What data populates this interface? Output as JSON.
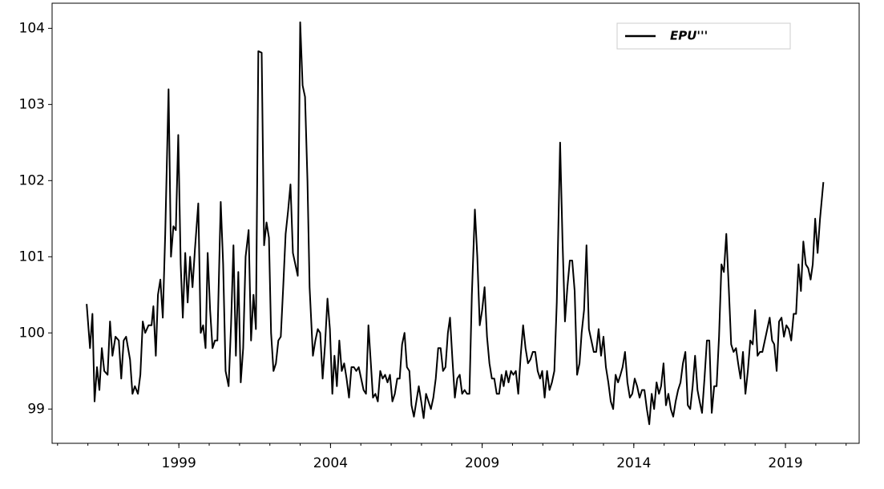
{
  "chart_data": {
    "type": "line",
    "x": [
      1995.96,
      1996.07,
      1996.15,
      1996.22,
      1996.3,
      1996.38,
      1996.46,
      1996.54,
      1996.65,
      1996.73,
      1996.81,
      1996.91,
      1997.02,
      1997.1,
      1997.18,
      1997.26,
      1997.39,
      1997.47,
      1997.55,
      1997.65,
      1997.73,
      1997.81,
      1997.89,
      1998.0,
      1998.1,
      1998.16,
      1998.24,
      1998.31,
      1998.39,
      1998.47,
      1998.55,
      1998.66,
      1998.74,
      1998.82,
      1998.9,
      1998.98,
      1999.06,
      1999.13,
      1999.21,
      1999.29,
      1999.37,
      1999.45,
      1999.53,
      1999.64,
      1999.72,
      1999.8,
      1999.88,
      1999.95,
      2000.03,
      2000.11,
      2000.19,
      2000.27,
      2000.38,
      2000.46,
      2000.54,
      2000.64,
      2000.72,
      2000.8,
      2000.88,
      2000.96,
      2001.04,
      2001.12,
      2001.2,
      2001.3,
      2001.38,
      2001.46,
      2001.54,
      2001.62,
      2001.73,
      2001.81,
      2001.89,
      2001.97,
      2002.04,
      2002.12,
      2002.2,
      2002.28,
      2002.36,
      2002.44,
      2002.52,
      2002.6,
      2002.68,
      2002.76,
      2002.84,
      2002.92,
      2003.0,
      2003.08,
      2003.16,
      2003.24,
      2003.31,
      2003.42,
      2003.5,
      2003.58,
      2003.66,
      2003.74,
      2003.82,
      2003.9,
      2003.98,
      2004.06,
      2004.13,
      2004.21,
      2004.29,
      2004.37,
      2004.45,
      2004.53,
      2004.61,
      2004.69,
      2004.77,
      2004.85,
      2004.93,
      2005.01,
      2005.09,
      2005.17,
      2005.25,
      2005.33,
      2005.4,
      2005.48,
      2005.56,
      2005.64,
      2005.72,
      2005.8,
      2005.88,
      2005.96,
      2006.04,
      2006.12,
      2006.2,
      2006.28,
      2006.36,
      2006.44,
      2006.52,
      2006.6,
      2006.67,
      2006.75,
      2006.83,
      2006.91,
      2006.99,
      2007.07,
      2007.15,
      2007.23,
      2007.31,
      2007.39,
      2007.47,
      2007.55,
      2007.63,
      2007.71,
      2007.79,
      2007.87,
      2007.94,
      2008.02,
      2008.1,
      2008.18,
      2008.26,
      2008.34,
      2008.42,
      2008.5,
      2008.58,
      2008.66,
      2008.76,
      2008.84,
      2008.92,
      2009.0,
      2009.08,
      2009.16,
      2009.24,
      2009.32,
      2009.4,
      2009.48,
      2009.56,
      2009.64,
      2009.71,
      2009.79,
      2009.87,
      2009.95,
      2010.03,
      2010.11,
      2010.19,
      2010.27,
      2010.35,
      2010.43,
      2010.51,
      2010.59,
      2010.67,
      2010.75,
      2010.83,
      2010.91,
      2010.98,
      2011.06,
      2011.14,
      2011.22,
      2011.3,
      2011.38,
      2011.46,
      2011.57,
      2011.65,
      2011.73,
      2011.81,
      2011.89,
      2011.97,
      2012.05,
      2012.13,
      2012.21,
      2012.28,
      2012.36,
      2012.44,
      2012.52,
      2012.6,
      2012.68,
      2012.76,
      2012.84,
      2012.92,
      2013.0,
      2013.08,
      2013.16,
      2013.24,
      2013.32,
      2013.4,
      2013.48,
      2013.56,
      2013.63,
      2013.71,
      2013.79,
      2013.87,
      2013.95,
      2014.03,
      2014.11,
      2014.19,
      2014.27,
      2014.35,
      2014.43,
      2014.51,
      2014.59,
      2014.67,
      2014.75,
      2014.83,
      2014.9,
      2014.98,
      2015.06,
      2015.14,
      2015.22,
      2015.3,
      2015.38,
      2015.46,
      2015.54,
      2015.62,
      2015.7,
      2015.78,
      2015.86,
      2015.94,
      2016.02,
      2016.1,
      2016.17,
      2016.25,
      2016.33,
      2016.41,
      2016.49,
      2016.57,
      2016.65,
      2016.73,
      2016.81,
      2016.89,
      2016.97,
      2017.05,
      2017.13,
      2017.21,
      2017.29,
      2017.37,
      2017.44,
      2017.52,
      2017.6,
      2017.68,
      2017.76,
      2017.84,
      2017.92,
      2018.0,
      2018.08,
      2018.16,
      2018.24,
      2018.32,
      2018.4,
      2018.48,
      2018.56,
      2018.63,
      2018.71,
      2018.79,
      2018.87,
      2018.95,
      2019.03,
      2019.11,
      2019.19,
      2019.27,
      2019.35,
      2019.43,
      2019.51,
      2019.59,
      2019.67,
      2019.75,
      2019.83,
      2019.9,
      2019.98,
      2020.06,
      2020.14,
      2020.25
    ],
    "series": [
      {
        "name": "EPU'''",
        "color": "#000000",
        "values": [
          100.38,
          99.8,
          100.25,
          99.1,
          99.55,
          99.25,
          99.8,
          99.5,
          99.45,
          100.15,
          99.7,
          99.95,
          99.9,
          99.4,
          99.9,
          99.95,
          99.65,
          99.2,
          99.3,
          99.2,
          99.45,
          100.15,
          100.0,
          100.1,
          100.1,
          100.35,
          99.7,
          100.5,
          100.7,
          100.2,
          101.3,
          103.2,
          101.0,
          101.4,
          101.35,
          102.6,
          100.9,
          100.2,
          101.05,
          100.4,
          101.0,
          100.6,
          101.1,
          101.7,
          100.0,
          100.1,
          99.8,
          101.05,
          100.3,
          99.8,
          99.9,
          99.9,
          101.72,
          100.9,
          99.5,
          99.3,
          100.1,
          101.15,
          99.7,
          100.8,
          99.35,
          99.8,
          101.0,
          101.35,
          99.9,
          100.5,
          100.05,
          103.7,
          103.68,
          101.15,
          101.45,
          101.25,
          100.0,
          99.5,
          99.6,
          99.9,
          99.95,
          100.6,
          101.3,
          101.6,
          101.95,
          101.05,
          100.9,
          100.75,
          104.08,
          103.25,
          103.1,
          102.0,
          100.6,
          99.7,
          99.9,
          100.05,
          100.0,
          99.4,
          99.85,
          100.45,
          100.05,
          99.2,
          99.7,
          99.3,
          99.9,
          99.5,
          99.6,
          99.4,
          99.15,
          99.55,
          99.55,
          99.5,
          99.55,
          99.4,
          99.25,
          99.2,
          100.1,
          99.6,
          99.15,
          99.2,
          99.1,
          99.5,
          99.4,
          99.45,
          99.35,
          99.45,
          99.1,
          99.2,
          99.4,
          99.4,
          99.85,
          100.0,
          99.55,
          99.5,
          99.05,
          98.9,
          99.1,
          99.3,
          99.1,
          98.88,
          99.2,
          99.1,
          99.0,
          99.15,
          99.4,
          99.8,
          99.8,
          99.5,
          99.55,
          100.0,
          100.2,
          99.65,
          99.15,
          99.4,
          99.45,
          99.2,
          99.25,
          99.2,
          99.2,
          100.5,
          101.62,
          101.0,
          100.1,
          100.3,
          100.6,
          99.95,
          99.6,
          99.4,
          99.4,
          99.2,
          99.2,
          99.45,
          99.3,
          99.5,
          99.35,
          99.5,
          99.45,
          99.5,
          99.2,
          99.7,
          100.1,
          99.8,
          99.6,
          99.65,
          99.75,
          99.75,
          99.5,
          99.4,
          99.5,
          99.15,
          99.5,
          99.25,
          99.35,
          99.5,
          100.4,
          102.5,
          101.2,
          100.15,
          100.6,
          100.95,
          100.95,
          100.55,
          99.45,
          99.6,
          100.0,
          100.3,
          101.15,
          100.05,
          99.9,
          99.75,
          99.75,
          100.05,
          99.7,
          99.95,
          99.55,
          99.35,
          99.1,
          99.0,
          99.45,
          99.35,
          99.45,
          99.55,
          99.75,
          99.35,
          99.15,
          99.2,
          99.4,
          99.3,
          99.15,
          99.25,
          99.25,
          99.0,
          98.8,
          99.2,
          99.0,
          99.35,
          99.2,
          99.3,
          99.6,
          99.05,
          99.2,
          99.0,
          98.9,
          99.1,
          99.25,
          99.35,
          99.6,
          99.75,
          99.05,
          99.0,
          99.3,
          99.7,
          99.25,
          99.1,
          98.95,
          99.4,
          99.9,
          99.9,
          98.95,
          99.3,
          99.3,
          99.95,
          100.9,
          100.8,
          101.3,
          100.6,
          99.85,
          99.75,
          99.8,
          99.6,
          99.4,
          99.75,
          99.2,
          99.5,
          99.9,
          99.85,
          100.3,
          99.7,
          99.75,
          99.75,
          99.9,
          100.05,
          100.2,
          99.9,
          99.85,
          99.5,
          100.15,
          100.2,
          99.95,
          100.1,
          100.05,
          99.9,
          100.25,
          100.25,
          100.9,
          100.55,
          101.2,
          100.9,
          100.85,
          100.7,
          100.9,
          101.5,
          101.05,
          101.5,
          101.98
        ]
      }
    ],
    "xlim": [
      1994.82,
      2021.43
    ],
    "xticks": [
      1999,
      2004,
      2009,
      2014,
      2019
    ],
    "xminorticks": [
      1995,
      1996,
      1997,
      1998,
      1999,
      2000,
      2001,
      2002,
      2003,
      2004,
      2005,
      2006,
      2007,
      2008,
      2009,
      2010,
      2011,
      2012,
      2013,
      2014,
      2015,
      2016,
      2017,
      2018,
      2019,
      2020,
      2021
    ],
    "ylim": [
      98.55,
      104.33
    ],
    "yticks": [
      99,
      100,
      101,
      102,
      103,
      104
    ],
    "legend": "upper right",
    "grid": false
  }
}
